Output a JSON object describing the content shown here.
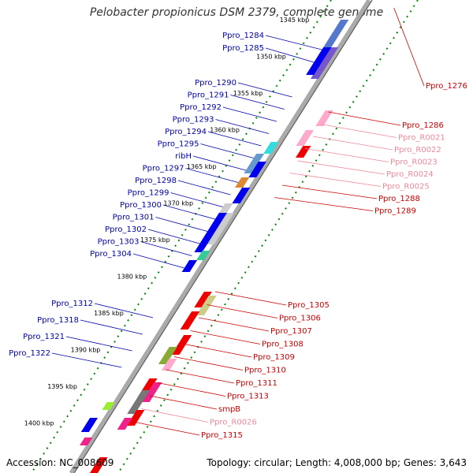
{
  "title": "Pelobacter propionicus DSM 2379, complete genome",
  "footer": {
    "accession": "Accession: NC_008609",
    "topology": "Topology: circular; Length: 4,008,000 bp; Genes: 3,643"
  },
  "ticks": [
    "1345 kbp",
    "1350 kbp",
    "1355 kbp",
    "1360 kbp",
    "1365 kbp",
    "1370 kbp",
    "1375 kbp",
    "1380 kbp",
    "1385 kbp",
    "1390 kbp",
    "1395 kbp",
    "1400 kbp"
  ],
  "labels_left": [
    "Ppro_1284",
    "Ppro_1285",
    "Ppro_1290",
    "Ppro_1291",
    "Ppro_1292",
    "Ppro_1293",
    "Ppro_1294",
    "Ppro_1295",
    "ribH",
    "Ppro_1297",
    "Ppro_1298",
    "Ppro_1299",
    "Ppro_1300",
    "Ppro_1301",
    "Ppro_1302",
    "Ppro_1303",
    "Ppro_1304",
    "Ppro_1312",
    "Ppro_1318",
    "Ppro_1321",
    "Ppro_1322"
  ],
  "labels_right": [
    "Ppro_1276",
    "Ppro_1286",
    "Ppro_R0021",
    "Ppro_R0022",
    "Ppro_R0023",
    "Ppro_R0024",
    "Ppro_R0025",
    "Ppro_1288",
    "Ppro_1289",
    "Ppro_1305",
    "Ppro_1306",
    "Ppro_1307",
    "Ppro_1308",
    "Ppro_1309",
    "Ppro_1310",
    "Ppro_1311",
    "Ppro_1313",
    "smpB",
    "Ppro_R0026",
    "Ppro_1315"
  ],
  "colors": {
    "left_label": "#0000aa",
    "right_label": "#cc0000",
    "rna_label": "#ee8899",
    "forward_gene": "#0000ee",
    "reverse_gene": "#ee0000",
    "tick_dots": "#008800",
    "backbone": "#999999"
  }
}
